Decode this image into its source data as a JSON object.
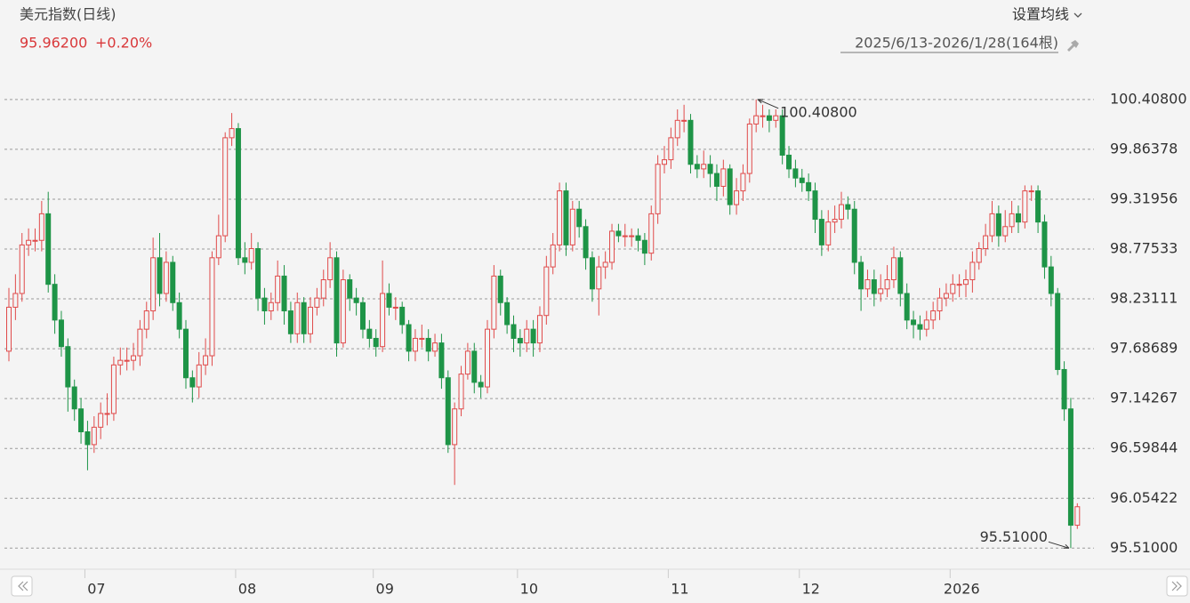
{
  "chart_data": {
    "type": "candlestick",
    "title": "美元指数(日线)",
    "quote_price": "95.96200",
    "quote_change": "+0.20%",
    "ma_button": "设置均线",
    "range": "2025/6/13-2026/1/28(164根)",
    "up_color": "#e04a4a",
    "down_color": "#1e9447",
    "grid": true,
    "ylim": [
      95.28,
      100.62
    ],
    "yticks": [
      {
        "value": 95.51,
        "label": "95.51000"
      },
      {
        "value": 96.05422,
        "label": "96.05422"
      },
      {
        "value": 96.59844,
        "label": "96.59844"
      },
      {
        "value": 97.14267,
        "label": "97.14267"
      },
      {
        "value": 97.68689,
        "label": "97.68689"
      },
      {
        "value": 98.23111,
        "label": "98.23111"
      },
      {
        "value": 98.77533,
        "label": "98.77533"
      },
      {
        "value": 99.31956,
        "label": "99.31956"
      },
      {
        "value": 99.86378,
        "label": "99.86378"
      },
      {
        "value": 100.408,
        "label": "100.40800"
      }
    ],
    "annotations": [
      {
        "value": 100.408,
        "label": "100.40800"
      },
      {
        "value": 95.51,
        "label": "95.51000"
      }
    ],
    "categories": [
      null,
      null,
      null,
      null,
      null,
      null,
      null,
      null,
      null,
      null,
      null,
      null,
      "07",
      null,
      null,
      null,
      null,
      null,
      null,
      null,
      null,
      null,
      null,
      null,
      null,
      null,
      null,
      null,
      null,
      null,
      null,
      null,
      null,
      null,
      null,
      "08",
      null,
      null,
      null,
      null,
      null,
      null,
      null,
      null,
      null,
      null,
      null,
      null,
      null,
      null,
      null,
      null,
      null,
      null,
      null,
      null,
      "09",
      null,
      null,
      null,
      null,
      null,
      null,
      null,
      null,
      null,
      null,
      null,
      null,
      null,
      null,
      null,
      null,
      null,
      null,
      null,
      null,
      null,
      "10",
      null,
      null,
      null,
      null,
      null,
      null,
      null,
      null,
      null,
      null,
      null,
      null,
      null,
      null,
      null,
      null,
      null,
      null,
      null,
      null,
      null,
      null,
      "11",
      null,
      null,
      null,
      null,
      null,
      null,
      null,
      null,
      null,
      null,
      null,
      null,
      null,
      null,
      null,
      null,
      null,
      null,
      null,
      "12",
      null,
      null,
      null,
      null,
      null,
      null,
      null,
      null,
      null,
      null,
      null,
      null,
      null,
      null,
      null,
      null,
      null,
      null,
      null,
      null,
      null,
      null,
      "2026",
      null,
      null,
      null,
      null,
      null,
      null,
      null,
      null,
      null,
      null,
      null,
      null,
      null,
      null,
      null,
      null,
      null,
      null,
      null
    ],
    "open": [
      97.66,
      98.14,
      98.29,
      98.82,
      98.87,
      98.87,
      99.16,
      98.39,
      98.0,
      97.71,
      97.27,
      97.03,
      96.78,
      96.64,
      96.83,
      96.98,
      96.98,
      97.51,
      97.56,
      97.56,
      97.61,
      97.9,
      98.1,
      98.68,
      98.29,
      98.63,
      98.19,
      97.9,
      97.37,
      97.27,
      97.51,
      97.61,
      98.68,
      98.92,
      99.99,
      100.09,
      98.68,
      98.63,
      98.78,
      98.24,
      98.1,
      98.19,
      98.48,
      98.1,
      97.85,
      98.19,
      97.85,
      98.14,
      98.24,
      98.44,
      98.68,
      97.75,
      98.44,
      98.24,
      98.19,
      97.9,
      97.8,
      97.71,
      98.29,
      98.14,
      98.14,
      97.95,
      97.66,
      97.8,
      97.8,
      97.66,
      97.75,
      97.37,
      96.64,
      97.03,
      97.41,
      97.66,
      97.32,
      97.27,
      97.9,
      98.48,
      98.19,
      97.95,
      97.8,
      97.75,
      97.9,
      97.75,
      98.05,
      98.58,
      98.82,
      99.41,
      98.82,
      99.21,
      99.02,
      98.68,
      98.34,
      98.58,
      98.63,
      98.97,
      98.92,
      98.92,
      98.92,
      98.87,
      98.73,
      99.16,
      99.7,
      99.75,
      99.99,
      100.18,
      100.18,
      99.7,
      99.65,
      99.7,
      99.6,
      99.46,
      99.65,
      99.26,
      99.41,
      99.6,
      100.14,
      100.23,
      100.23,
      100.18,
      100.23,
      99.8,
      99.65,
      99.55,
      99.5,
      99.41,
      99.1,
      98.82,
      99.07,
      99.1,
      99.26,
      99.21,
      98.63,
      98.34,
      98.44,
      98.29,
      98.34,
      98.44,
      98.68,
      98.29,
      98.0,
      97.95,
      97.9,
      98.0,
      98.1,
      98.24,
      98.29,
      98.39,
      98.39,
      98.44,
      98.63,
      98.78,
      98.92,
      99.16,
      98.92,
      99.02,
      99.16,
      99.07,
      99.41,
      99.41,
      99.07,
      98.58,
      98.29,
      97.46,
      97.03,
      95.76
    ],
    "high": [
      98.35,
      98.5,
      98.95,
      99.0,
      99.0,
      99.3,
      99.4,
      98.5,
      98.1,
      97.8,
      97.35,
      97.15,
      96.9,
      96.95,
      97.1,
      97.2,
      97.6,
      97.7,
      97.7,
      97.75,
      98.0,
      98.2,
      98.9,
      98.95,
      98.75,
      98.7,
      98.3,
      98.0,
      97.45,
      97.65,
      97.8,
      98.75,
      99.15,
      100.05,
      100.26,
      100.15,
      98.85,
      98.95,
      98.85,
      98.35,
      98.3,
      98.65,
      98.6,
      98.2,
      98.3,
      98.25,
      98.25,
      98.35,
      98.55,
      98.85,
      98.75,
      98.55,
      98.5,
      98.35,
      98.25,
      98.0,
      97.9,
      98.65,
      98.4,
      98.25,
      98.2,
      98.0,
      97.9,
      97.95,
      97.9,
      97.85,
      97.85,
      97.45,
      97.1,
      97.5,
      97.75,
      97.75,
      97.4,
      98.0,
      98.6,
      98.55,
      98.25,
      98.05,
      97.9,
      98.0,
      98.0,
      98.15,
      98.7,
      98.95,
      99.5,
      99.5,
      99.3,
      99.3,
      99.1,
      98.75,
      98.7,
      98.75,
      99.05,
      99.05,
      99.05,
      99.0,
      99.0,
      98.95,
      99.25,
      99.8,
      99.9,
      100.1,
      100.3,
      100.35,
      100.25,
      99.8,
      99.85,
      99.8,
      99.7,
      99.75,
      99.7,
      99.55,
      99.7,
      100.2,
      100.408,
      100.35,
      100.3,
      100.3,
      100.3,
      99.9,
      99.75,
      99.65,
      99.6,
      99.5,
      99.2,
      99.2,
      99.25,
      99.4,
      99.35,
      99.3,
      98.7,
      98.55,
      98.55,
      98.5,
      98.6,
      98.8,
      98.75,
      98.4,
      98.1,
      98.05,
      98.1,
      98.2,
      98.35,
      98.4,
      98.5,
      98.5,
      98.55,
      98.75,
      98.85,
      99.05,
      99.3,
      99.25,
      99.2,
      99.3,
      99.25,
      99.47,
      99.47,
      99.47,
      99.15,
      98.7,
      98.35,
      97.55,
      97.15,
      96.0
    ],
    "low": [
      97.55,
      98.0,
      98.2,
      98.7,
      98.75,
      98.75,
      98.3,
      97.85,
      97.6,
      97.0,
      96.9,
      96.65,
      96.36,
      96.55,
      96.7,
      96.85,
      96.9,
      97.4,
      97.45,
      97.45,
      97.5,
      97.8,
      98.0,
      98.15,
      98.2,
      98.1,
      97.8,
      97.25,
      97.1,
      97.15,
      97.4,
      97.5,
      98.6,
      98.85,
      99.9,
      98.6,
      98.5,
      98.55,
      98.1,
      97.95,
      98.0,
      98.1,
      97.95,
      97.75,
      97.75,
      97.75,
      97.75,
      98.05,
      98.15,
      98.35,
      97.6,
      97.7,
      98.1,
      98.05,
      97.8,
      97.7,
      97.6,
      97.65,
      98.05,
      98.0,
      97.85,
      97.55,
      97.55,
      97.7,
      97.55,
      97.6,
      97.25,
      96.55,
      96.2,
      96.95,
      97.35,
      97.2,
      97.15,
      97.2,
      97.8,
      98.05,
      97.85,
      97.65,
      97.6,
      97.65,
      97.6,
      97.65,
      97.95,
      98.5,
      98.75,
      98.7,
      98.75,
      98.9,
      98.55,
      98.2,
      98.05,
      98.45,
      98.55,
      98.85,
      98.8,
      98.8,
      98.75,
      98.6,
      98.65,
      99.05,
      99.6,
      99.65,
      99.9,
      100.05,
      99.6,
      99.55,
      99.55,
      99.45,
      99.3,
      99.35,
      99.15,
      99.15,
      99.3,
      99.5,
      100.05,
      100.1,
      100.05,
      100.1,
      99.7,
      99.55,
      99.45,
      99.4,
      99.3,
      98.95,
      98.7,
      98.75,
      98.95,
      99.0,
      99.1,
      98.5,
      98.1,
      98.25,
      98.15,
      98.2,
      98.25,
      98.35,
      98.15,
      97.9,
      97.8,
      97.78,
      97.82,
      97.9,
      98.0,
      98.15,
      98.2,
      98.25,
      98.25,
      98.3,
      98.55,
      98.7,
      98.85,
      98.8,
      98.85,
      98.95,
      98.95,
      99.0,
      99.3,
      98.95,
      98.45,
      98.15,
      97.4,
      96.9,
      95.51,
      95.72
    ],
    "close": [
      98.14,
      98.29,
      98.82,
      98.87,
      98.87,
      99.16,
      98.39,
      98.0,
      97.71,
      97.27,
      97.03,
      96.78,
      96.64,
      96.83,
      96.98,
      96.98,
      97.51,
      97.56,
      97.56,
      97.61,
      97.9,
      98.1,
      98.68,
      98.29,
      98.63,
      98.19,
      97.9,
      97.37,
      97.27,
      97.51,
      97.61,
      98.68,
      98.92,
      99.99,
      100.09,
      98.68,
      98.63,
      98.78,
      98.24,
      98.1,
      98.19,
      98.48,
      98.1,
      97.85,
      98.19,
      97.85,
      98.14,
      98.24,
      98.44,
      98.68,
      97.75,
      98.44,
      98.24,
      98.19,
      97.9,
      97.8,
      97.71,
      98.29,
      98.14,
      98.14,
      97.95,
      97.66,
      97.8,
      97.8,
      97.66,
      97.75,
      97.37,
      96.64,
      97.03,
      97.41,
      97.66,
      97.32,
      97.27,
      97.9,
      98.48,
      98.19,
      97.95,
      97.8,
      97.75,
      97.9,
      97.75,
      98.05,
      98.58,
      98.82,
      99.41,
      98.82,
      99.21,
      99.02,
      98.68,
      98.34,
      98.58,
      98.63,
      98.97,
      98.92,
      98.92,
      98.92,
      98.87,
      98.73,
      99.16,
      99.7,
      99.75,
      99.99,
      100.18,
      100.18,
      99.7,
      99.65,
      99.7,
      99.6,
      99.46,
      99.65,
      99.26,
      99.41,
      99.6,
      100.14,
      100.23,
      100.23,
      100.18,
      100.23,
      99.8,
      99.65,
      99.55,
      99.5,
      99.41,
      99.1,
      98.82,
      99.07,
      99.1,
      99.26,
      99.21,
      98.63,
      98.34,
      98.44,
      98.29,
      98.34,
      98.44,
      98.68,
      98.29,
      98.0,
      97.95,
      97.9,
      98.0,
      98.1,
      98.24,
      98.29,
      98.39,
      98.39,
      98.44,
      98.63,
      98.78,
      98.92,
      99.16,
      98.92,
      99.02,
      99.16,
      99.07,
      99.41,
      99.41,
      99.07,
      98.58,
      98.29,
      97.46,
      97.03,
      95.76,
      95.962
    ]
  }
}
